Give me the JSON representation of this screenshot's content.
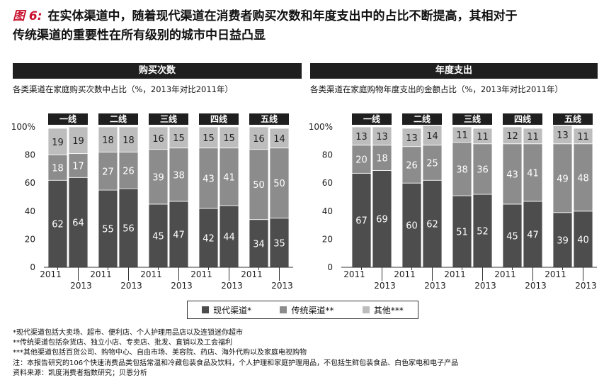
{
  "title": {
    "figure_label": "图 6:",
    "line1": "在实体渠道中，随着现代渠道在消费者购买次数和年度支出中的占比不断提高，其相对于",
    "line2": "传统渠道的重要性在所有级别的城市中日益凸显"
  },
  "colors": {
    "modern": "#4d4d4d",
    "traditional": "#8c8c8c",
    "other": "#bdbdbd",
    "header_bg": "#1f1f1f"
  },
  "chart_data": [
    {
      "type": "stacked-bar",
      "panel_title": "购买次数",
      "subtitle": "各类渠道在家庭购买次数中占比（%，2013年对比2011年）",
      "ylim": [
        0,
        100
      ],
      "yticks": [
        "0",
        "20",
        "40",
        "60",
        "80",
        "100%"
      ],
      "groups": [
        "一线",
        "二线",
        "三线",
        "四线",
        "五线"
      ],
      "years": [
        "2011",
        "2013"
      ],
      "series": [
        {
          "name": "现代渠道*",
          "values": [
            [
              62,
              64
            ],
            [
              55,
              56
            ],
            [
              45,
              47
            ],
            [
              42,
              44
            ],
            [
              34,
              35
            ]
          ]
        },
        {
          "name": "传统渠道**",
          "values": [
            [
              18,
              17
            ],
            [
              27,
              26
            ],
            [
              39,
              38
            ],
            [
              43,
              41
            ],
            [
              50,
              50
            ]
          ]
        },
        {
          "name": "其他***",
          "values": [
            [
              19,
              19
            ],
            [
              18,
              18
            ],
            [
              16,
              15
            ],
            [
              15,
              15
            ],
            [
              16,
              14
            ]
          ]
        }
      ]
    },
    {
      "type": "stacked-bar",
      "panel_title": "年度支出",
      "subtitle": "各类渠道在家庭购物年度支出的金额占比（%，2013年对比2011年）",
      "ylim": [
        0,
        100
      ],
      "yticks": [
        "0",
        "20",
        "40",
        "60",
        "80",
        "100%"
      ],
      "groups": [
        "一线",
        "二线",
        "三线",
        "四线",
        "五线"
      ],
      "years": [
        "2011",
        "2013"
      ],
      "series": [
        {
          "name": "现代渠道*",
          "values": [
            [
              67,
              69
            ],
            [
              60,
              62
            ],
            [
              51,
              52
            ],
            [
              45,
              47
            ],
            [
              39,
              40
            ]
          ]
        },
        {
          "name": "传统渠道**",
          "values": [
            [
              20,
              18
            ],
            [
              26,
              25
            ],
            [
              38,
              36
            ],
            [
              43,
              41
            ],
            [
              49,
              48
            ]
          ]
        },
        {
          "name": "其他***",
          "values": [
            [
              13,
              13
            ],
            [
              13,
              14
            ],
            [
              11,
              11
            ],
            [
              12,
              11
            ],
            [
              13,
              11
            ]
          ]
        }
      ]
    }
  ],
  "legend": {
    "modern": "现代渠道*",
    "traditional": "传统渠道**",
    "other": "其他***"
  },
  "notes": [
    "*现代渠道包括大卖场、超市、便利店、个人护理用品店以及连锁迷你超市",
    "**传统渠道包括杂货店、独立小店、专卖店、批发、直销以及工会福利",
    "***其他渠道包括百货公司、购物中心、自由市场、美容院、药店、海外代购以及家庭电视购物",
    "注：本报告研究的106个快速消费品类包括常温和冷藏包装食品及饮料，个人护理和家庭护理用品，不包括生鲜包装食品、白色家电和电子产品",
    "资料来源：凯度消费者指数研究；贝恩分析"
  ]
}
